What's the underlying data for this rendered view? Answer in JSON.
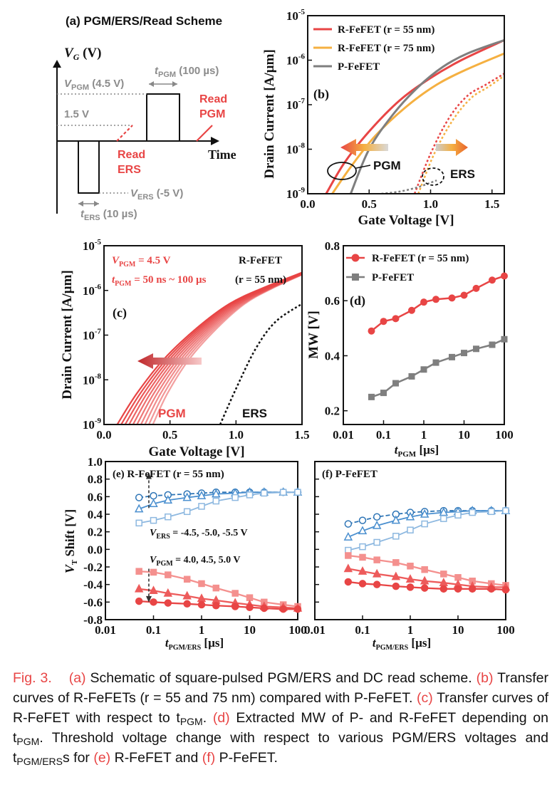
{
  "panel_a": {
    "title": "(a) PGM/ERS/Read Scheme",
    "vg_label": "V",
    "vg_sub": "G",
    "vg_unit": " (V)",
    "vpgm_label": "V",
    "vpgm_sub": "PGM",
    "vpgm_val": " (4.5 V)",
    "v15": "1.5 V",
    "tpgm_label": "t",
    "tpgm_sub": "PGM",
    "tpgm_val": " (100 µs)",
    "read_pgm_1": "Read",
    "read_pgm_2": "PGM",
    "read_ers_1": "Read",
    "read_ers_2": "ERS",
    "time": "Time",
    "vers_label": "V",
    "vers_sub": "ERS",
    "vers_val": " (-5 V)",
    "ters_label": "t",
    "ters_sub": "ERS",
    "ters_val": " (10 µs)"
  },
  "chart_data": [
    {
      "panel": "(b)",
      "type": "line",
      "xlabel": "Gate Voltage [V]",
      "ylabel": "Drain Current [A/µm]",
      "xlim": [
        0.0,
        1.6
      ],
      "ylim_log10": [
        -9,
        -5
      ],
      "yscale": "log",
      "xticks": [
        "0.0",
        "0.5",
        "1.0",
        "1.5"
      ],
      "ytick_base": "10",
      "ytick_exps": [
        "-9",
        "-8",
        "-7",
        "-6",
        "-5"
      ],
      "annotations": [
        "PGM",
        "ERS"
      ],
      "series": [
        {
          "name": "R-FeFET (r = 55 nm)",
          "color": "#e84545",
          "state": "PGM",
          "x": [
            0.15,
            0.3,
            0.5,
            0.75,
            1.0,
            1.25,
            1.6
          ],
          "log10_y": [
            -9.0,
            -8.3,
            -7.6,
            -6.9,
            -6.4,
            -6.0,
            -5.55
          ]
        },
        {
          "name": "R-FeFET (r = 75 nm)",
          "color": "#f5b041",
          "state": "PGM",
          "x": [
            0.2,
            0.35,
            0.55,
            0.8,
            1.05,
            1.3,
            1.6
          ],
          "log10_y": [
            -9.0,
            -8.4,
            -7.7,
            -7.05,
            -6.55,
            -6.2,
            -5.85
          ]
        },
        {
          "name": "P-FeFET",
          "color": "#7f7f7f",
          "state": "PGM",
          "x": [
            0.35,
            0.5,
            0.7,
            0.9,
            1.1,
            1.3,
            1.6
          ],
          "log10_y": [
            -9.0,
            -8.0,
            -7.2,
            -6.6,
            -6.15,
            -5.85,
            -5.55
          ]
        },
        {
          "name": "R-FeFET (r = 55 nm)",
          "color": "#e84545",
          "state": "ERS",
          "x": [
            0.87,
            1.0,
            1.15,
            1.3,
            1.45,
            1.6
          ],
          "log10_y": [
            -9.0,
            -8.1,
            -7.3,
            -6.8,
            -6.55,
            -6.3
          ]
        },
        {
          "name": "R-FeFET (r = 75 nm)",
          "color": "#f5b041",
          "state": "ERS",
          "x": [
            0.9,
            1.03,
            1.18,
            1.33,
            1.47,
            1.6
          ],
          "log10_y": [
            -9.0,
            -8.1,
            -7.35,
            -6.85,
            -6.6,
            -6.35
          ]
        },
        {
          "name": "P-FeFET",
          "color": "#7f7f7f",
          "state": "ERS",
          "x": [
            0.6,
            0.75,
            0.9,
            1.05
          ],
          "log10_y": [
            -9.0,
            -8.95,
            -8.85,
            -8.7
          ]
        }
      ]
    },
    {
      "panel": "(c)",
      "type": "line",
      "xlabel": "Gate Voltage [V]",
      "ylabel": "Drain Current [A/µm]",
      "xlim": [
        0.0,
        1.5
      ],
      "ylim_log10": [
        -9,
        -5
      ],
      "yscale": "log",
      "xticks": [
        "0.0",
        "0.5",
        "1.0",
        "1.5"
      ],
      "ytick_base": "10",
      "ytick_exps": [
        "-9",
        "-8",
        "-7",
        "-6",
        "-5"
      ],
      "annotation_vpgm": "V",
      "annotation_vpgm_sub": "PGM",
      "annotation_vpgm_val": " = 4.5 V",
      "annotation_tpgm": "t",
      "annotation_tpgm_sub": "PGM",
      "annotation_tpgm_val": " = 50 ns ~ 100 µs",
      "device": "R-FeFET",
      "device_r": "(r = 55 nm)",
      "label_pgm": "PGM",
      "label_ers": "ERS",
      "pgm_curves_vth_shift": [
        0.0,
        0.03,
        0.06,
        0.09,
        0.12,
        0.15,
        0.18,
        0.21,
        0.24,
        0.27
      ],
      "ers_curve": {
        "x": [
          0.88,
          1.0,
          1.15,
          1.3,
          1.5
        ],
        "log10_y": [
          -9.0,
          -8.2,
          -7.3,
          -6.7,
          -6.3
        ]
      }
    },
    {
      "panel": "(d)",
      "type": "line",
      "xlabel": "t",
      "xlabel_sub": "PGM",
      "xlabel_unit": " [µs]",
      "ylabel": "MW [V]",
      "xscale": "log",
      "xticks": [
        "0.01",
        "0.1",
        "1",
        "10",
        "100"
      ],
      "yticks": [
        "0.2",
        "0.4",
        "0.6",
        "0.8"
      ],
      "ylim": [
        0.15,
        0.8
      ],
      "series": [
        {
          "name": "R-FeFET (r = 55 nm)",
          "color": "#e84545",
          "marker": "circle",
          "x": [
            0.05,
            0.1,
            0.2,
            0.5,
            1,
            2,
            5,
            10,
            20,
            50,
            100
          ],
          "y": [
            0.49,
            0.525,
            0.535,
            0.565,
            0.595,
            0.605,
            0.61,
            0.62,
            0.645,
            0.675,
            0.69
          ]
        },
        {
          "name": "P-FeFET",
          "color": "#7f7f7f",
          "marker": "square",
          "x": [
            0.05,
            0.1,
            0.2,
            0.5,
            1,
            2,
            5,
            10,
            20,
            50,
            100
          ],
          "y": [
            0.25,
            0.265,
            0.3,
            0.325,
            0.35,
            0.375,
            0.395,
            0.41,
            0.425,
            0.44,
            0.46
          ]
        }
      ]
    },
    {
      "panel": "(e) R-FeFET (r = 55 nm)",
      "type": "line",
      "xlabel": "t",
      "xlabel_sub": "PGM/ERS",
      "xlabel_unit": " [µs]",
      "ylabel_v": "V",
      "ylabel_t": "T",
      "ylabel_rest": " Shift [V]",
      "xscale": "log",
      "xticks": [
        "0.01",
        "0.1",
        "1",
        "10",
        "100"
      ],
      "yticks": [
        "1.0",
        "0.8",
        "0.6",
        "0.4",
        "0.2",
        "0.0",
        "-0.2",
        "-0.4",
        "-0.6",
        "-0.8"
      ],
      "ylim": [
        -0.8,
        1.0
      ],
      "legend_ers_v": "V",
      "legend_ers_sub": "ERS",
      "legend_ers_val": " = -4.5, -5.0, -5.5 V",
      "legend_pgm_v": "V",
      "legend_pgm_sub": "PGM",
      "legend_pgm_val": " = 4.0, 4.5, 5.0 V",
      "x": [
        0.05,
        0.1,
        0.2,
        0.5,
        1,
        2,
        5,
        10,
        20,
        50,
        100
      ],
      "series": [
        {
          "name": "ERS -5.5 V",
          "marker": "circle",
          "y": [
            0.59,
            0.61,
            0.62,
            0.63,
            0.64,
            0.65,
            0.65,
            0.65,
            0.65,
            0.65,
            0.65
          ]
        },
        {
          "name": "ERS -5.0 V",
          "marker": "triangle",
          "y": [
            0.46,
            0.52,
            0.56,
            0.59,
            0.61,
            0.63,
            0.64,
            0.65,
            0.65,
            0.65,
            0.65
          ]
        },
        {
          "name": "ERS -4.5 V",
          "marker": "square",
          "y": [
            0.3,
            0.33,
            0.37,
            0.43,
            0.49,
            0.55,
            0.59,
            0.62,
            0.64,
            0.65,
            0.65
          ]
        },
        {
          "name": "PGM 4.0 V",
          "marker": "square",
          "y": [
            -0.25,
            -0.26,
            -0.29,
            -0.34,
            -0.39,
            -0.44,
            -0.5,
            -0.55,
            -0.6,
            -0.63,
            -0.65
          ]
        },
        {
          "name": "PGM 4.5 V",
          "marker": "triangle",
          "y": [
            -0.45,
            -0.47,
            -0.5,
            -0.53,
            -0.56,
            -0.58,
            -0.61,
            -0.63,
            -0.65,
            -0.66,
            -0.67
          ]
        },
        {
          "name": "PGM 5.0 V",
          "marker": "circle",
          "y": [
            -0.59,
            -0.6,
            -0.61,
            -0.62,
            -0.63,
            -0.64,
            -0.65,
            -0.66,
            -0.67,
            -0.68,
            -0.68
          ]
        }
      ]
    },
    {
      "panel": "(f) P-FeFET",
      "type": "line",
      "xlabel": "t",
      "xlabel_sub": "PGM/ERS",
      "xlabel_unit": " [µs]",
      "xscale": "log",
      "xticks": [
        "0.01",
        "0.1",
        "1",
        "10",
        "100"
      ],
      "ylim": [
        -0.8,
        1.0
      ],
      "x": [
        0.05,
        0.1,
        0.2,
        0.5,
        1,
        2,
        5,
        10,
        20,
        50,
        100
      ],
      "series": [
        {
          "name": "ERS -5.5 V",
          "marker": "circle",
          "y": [
            0.29,
            0.33,
            0.37,
            0.4,
            0.42,
            0.43,
            0.44,
            0.44,
            0.44,
            0.44,
            0.44
          ]
        },
        {
          "name": "ERS -5.0 V",
          "marker": "triangle",
          "y": [
            0.14,
            0.21,
            0.27,
            0.33,
            0.37,
            0.4,
            0.42,
            0.43,
            0.44,
            0.44,
            0.44
          ]
        },
        {
          "name": "ERS -4.5 V",
          "marker": "square",
          "y": [
            -0.01,
            0.03,
            0.08,
            0.15,
            0.22,
            0.29,
            0.35,
            0.39,
            0.42,
            0.43,
            0.44
          ]
        },
        {
          "name": "PGM 4.0 V",
          "marker": "square",
          "y": [
            -0.07,
            -0.09,
            -0.12,
            -0.15,
            -0.19,
            -0.23,
            -0.28,
            -0.32,
            -0.36,
            -0.39,
            -0.41
          ]
        },
        {
          "name": "PGM 4.5 V",
          "marker": "triangle",
          "y": [
            -0.22,
            -0.25,
            -0.28,
            -0.31,
            -0.34,
            -0.36,
            -0.38,
            -0.4,
            -0.42,
            -0.43,
            -0.43
          ]
        },
        {
          "name": "PGM 5.0 V",
          "marker": "circle",
          "y": [
            -0.37,
            -0.39,
            -0.4,
            -0.42,
            -0.43,
            -0.44,
            -0.45,
            -0.45,
            -0.45,
            -0.45,
            -0.46
          ]
        }
      ]
    }
  ],
  "caption": {
    "fig": "Fig. 3.",
    "a": "(a)",
    "a_text": " Schematic of square-pulsed PGM/ERS and DC read scheme. ",
    "b": "(b)",
    "b_text": " Transfer curves of R-FeFETs (r = 55 and 75 nm) compared with P-FeFET. ",
    "c": "(c)",
    "c_text": " Transfer curves of R-FeFET with respect to t",
    "c_sub": "PGM",
    "c_end": ". ",
    "d": "(d)",
    "d_text": " Extracted MW of P- and R-FeFET depending on t",
    "d_sub": "PGM",
    "d_end": ". Threshold voltage change with respect to various PGM/ERS voltages and t",
    "e_sub": "PGM/ERS",
    "e_pre": "s for ",
    "e": "(e)",
    "e_text": " R-FeFET and ",
    "f": "(f)",
    "f_text": " P-FeFET."
  }
}
